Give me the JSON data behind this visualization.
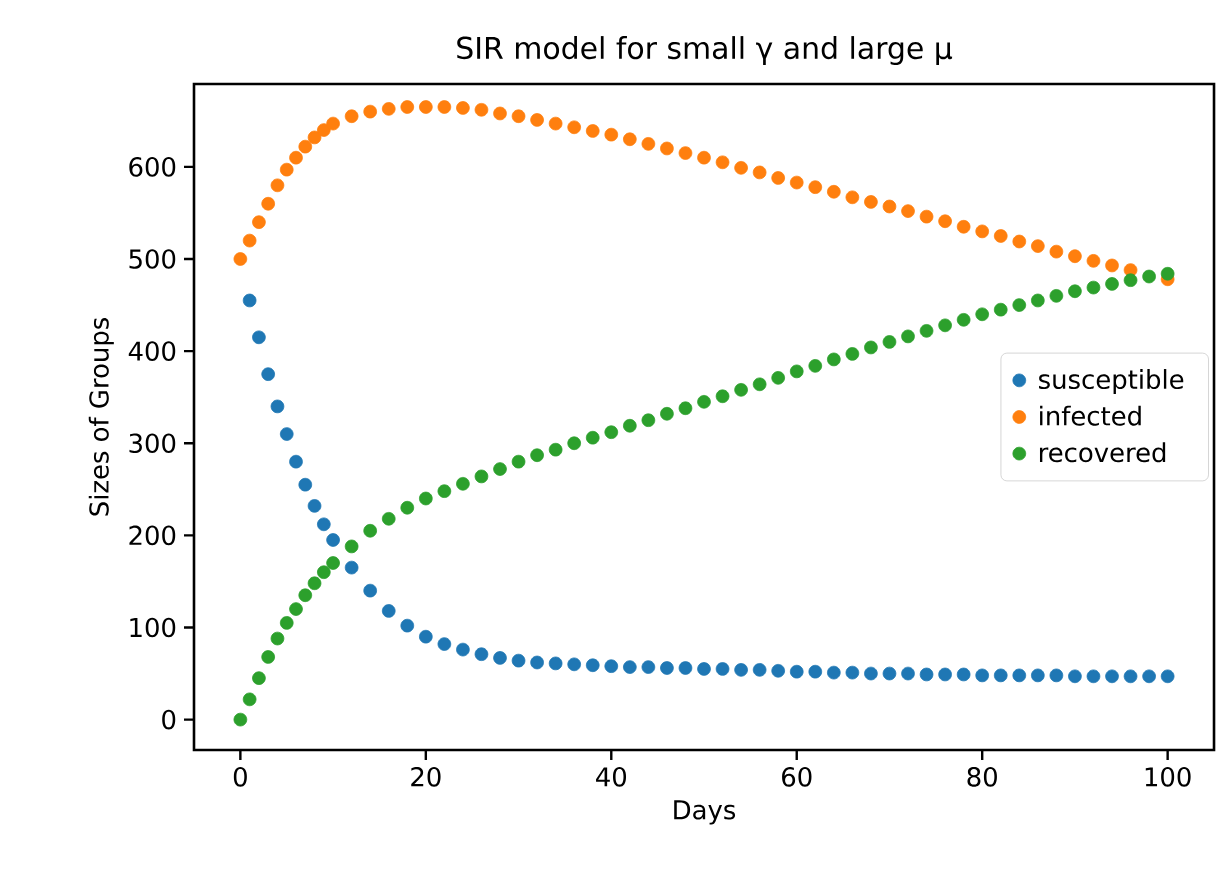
{
  "chart_data": {
    "type": "scatter",
    "title": "SIR model for small γ and large μ",
    "xlabel": "Days",
    "ylabel": "Sizes of Groups",
    "x": [
      0,
      1,
      2,
      3,
      4,
      5,
      6,
      7,
      8,
      9,
      10,
      12,
      14,
      16,
      18,
      20,
      22,
      24,
      26,
      28,
      30,
      32,
      34,
      36,
      38,
      40,
      42,
      44,
      46,
      48,
      50,
      52,
      54,
      56,
      58,
      60,
      62,
      64,
      66,
      68,
      70,
      72,
      74,
      76,
      78,
      80,
      82,
      84,
      86,
      88,
      90,
      92,
      94,
      96,
      98,
      100
    ],
    "series": [
      {
        "name": "susceptible",
        "color": "#1f77b4",
        "values": [
          null,
          455,
          415,
          375,
          340,
          310,
          280,
          255,
          232,
          212,
          195,
          165,
          140,
          118,
          102,
          90,
          82,
          76,
          71,
          67,
          64,
          62,
          61,
          60,
          59,
          58,
          57,
          57,
          56,
          56,
          55,
          55,
          54,
          54,
          53,
          52,
          52,
          51,
          51,
          50,
          50,
          50,
          49,
          49,
          49,
          48,
          48,
          48,
          48,
          48,
          47,
          47,
          47,
          47,
          47,
          47
        ]
      },
      {
        "name": "infected",
        "color": "#ff7f0e",
        "values": [
          500,
          520,
          540,
          560,
          580,
          597,
          610,
          622,
          632,
          640,
          647,
          655,
          660,
          663,
          665,
          665,
          665,
          664,
          662,
          658,
          655,
          651,
          647,
          643,
          639,
          635,
          630,
          625,
          620,
          615,
          610,
          605,
          599,
          594,
          588,
          583,
          578,
          573,
          567,
          562,
          557,
          552,
          546,
          541,
          535,
          530,
          525,
          519,
          514,
          508,
          503,
          498,
          493,
          488,
          null,
          478
        ]
      },
      {
        "name": "recovered",
        "color": "#2ca02c",
        "values": [
          0,
          22,
          45,
          68,
          88,
          105,
          120,
          135,
          148,
          160,
          170,
          188,
          205,
          218,
          230,
          240,
          248,
          256,
          264,
          272,
          280,
          287,
          293,
          300,
          306,
          312,
          319,
          325,
          332,
          338,
          345,
          351,
          358,
          364,
          371,
          378,
          384,
          391,
          397,
          404,
          410,
          416,
          422,
          428,
          434,
          440,
          445,
          450,
          455,
          460,
          465,
          469,
          473,
          477,
          481,
          484
        ]
      }
    ],
    "xlim": [
      -5,
      105
    ],
    "ylim": [
      -33,
      690
    ],
    "xticks": [
      0,
      20,
      40,
      60,
      80,
      100
    ],
    "yticks": [
      0,
      100,
      200,
      300,
      400,
      500,
      600
    ],
    "marker": "circle",
    "legend": "right",
    "grid": false
  }
}
